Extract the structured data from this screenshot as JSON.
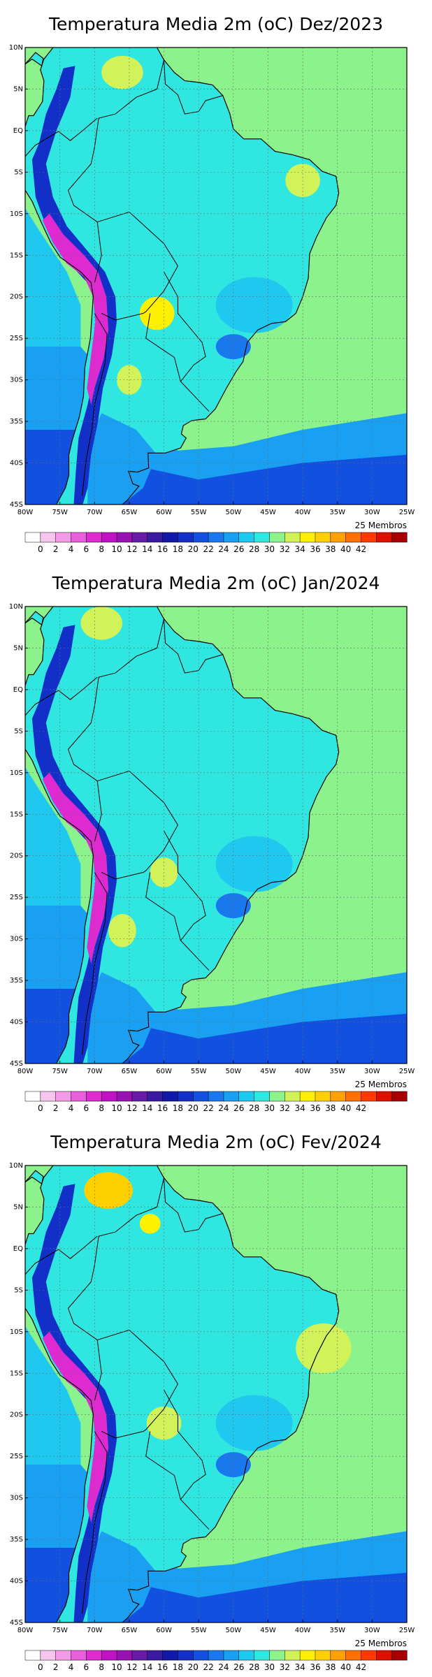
{
  "colorbar": {
    "labels": [
      "0",
      "2",
      "4",
      "6",
      "8",
      "10",
      "12",
      "14",
      "16",
      "18",
      "20",
      "22",
      "24",
      "26",
      "28",
      "30",
      "32",
      "34",
      "36",
      "38",
      "40",
      "42"
    ],
    "colors": [
      "#ffffff",
      "#f7c6ef",
      "#f39be6",
      "#ec5fdc",
      "#df2ad1",
      "#c011c4",
      "#9912b6",
      "#6a1aa8",
      "#3a1aa0",
      "#1218a8",
      "#1230c8",
      "#1250e0",
      "#1a78ee",
      "#1aa0f2",
      "#1ec8ee",
      "#30e6e0",
      "#8cf28c",
      "#d2f25a",
      "#fff000",
      "#ffd000",
      "#ffa000",
      "#ff7000",
      "#ff3a00",
      "#e01000",
      "#a80000"
    ]
  },
  "axes": {
    "lon_labels": [
      "80W",
      "75W",
      "70W",
      "65W",
      "60W",
      "55W",
      "50W",
      "45W",
      "40W",
      "35W",
      "30W",
      "25W"
    ],
    "lat_labels": [
      "10N",
      "5N",
      "EQ",
      "5S",
      "10S",
      "15S",
      "20S",
      "25S",
      "30S",
      "35S",
      "40S",
      "45S"
    ]
  },
  "panels": [
    {
      "title": "Temperatura Media 2m (oC) Dez/2023",
      "members": "25 Membros"
    },
    {
      "title": "Temperatura Media 2m (oC) Jan/2024",
      "members": "25 Membros"
    },
    {
      "title": "Temperatura Media 2m (oC) Fev/2024",
      "members": "25 Membros"
    }
  ]
}
